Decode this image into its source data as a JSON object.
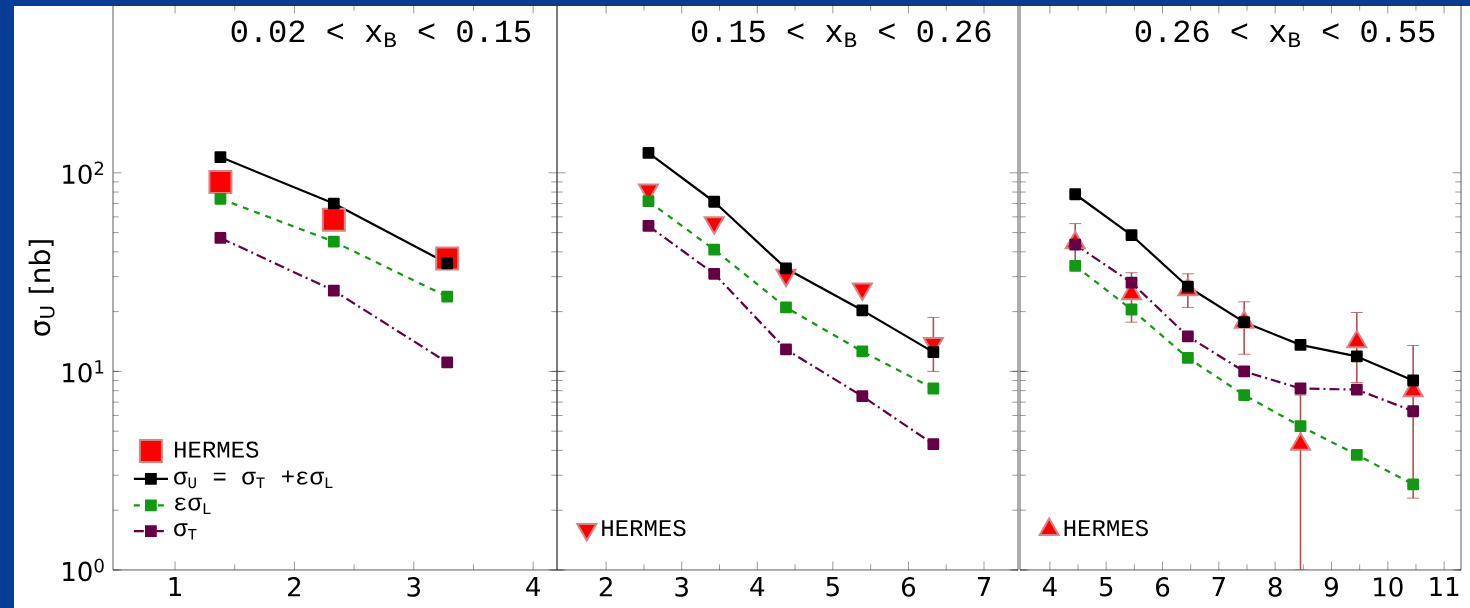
{
  "chart_data": [
    {
      "type": "line",
      "title": "0.02 < x$_{B}$ < 0.15",
      "ylabel": "σ$_{U}$ [nb]",
      "x": [
        1.38,
        2.33,
        3.28
      ],
      "xlim": [
        0.48,
        4.2
      ],
      "xticks": [
        1,
        2,
        3,
        4
      ],
      "ylim": [
        1,
        700
      ],
      "log": "y",
      "yticks": [
        {
          "value": 1,
          "label": "10$^{0}$"
        },
        {
          "value": 10,
          "label": "10$^{1}$"
        },
        {
          "value": 100,
          "label": "10$^{2}$"
        }
      ],
      "legend": "bottom left",
      "series": [
        {
          "name": "HERMES",
          "type": "scatter",
          "color": "#ff0000",
          "marker": "square",
          "values": [
            90,
            58,
            37
          ]
        },
        {
          "name": "σ$_{U}$ = σ$_{T}$ +εσ$_{L}$",
          "type": "line",
          "color": "#000000",
          "marker": "square",
          "line_style": "solid",
          "values": [
            120,
            70,
            35
          ]
        },
        {
          "name": "εσ$_{L}$",
          "type": "line",
          "color": "#119911",
          "marker": "square",
          "line_style": "dashed",
          "values": [
            74,
            45,
            23.8
          ]
        },
        {
          "name": "σ$_{T}$",
          "type": "line",
          "color": "#660044",
          "marker": "square",
          "line_style": "dashdot",
          "values": [
            47,
            25.5,
            11.1
          ]
        }
      ]
    },
    {
      "type": "line",
      "title": "0.15 < x$_{B}$ < 0.26",
      "x": [
        2.56,
        3.43,
        4.38,
        5.39,
        6.33
      ],
      "xlim": [
        1.35,
        7.45
      ],
      "xticks": [
        2,
        3,
        4,
        5,
        6,
        7
      ],
      "ylim": [
        1,
        700
      ],
      "log": "y",
      "yticks": [
        {
          "value": 1,
          "label": null
        },
        {
          "value": 10,
          "label": null
        },
        {
          "value": 100,
          "label": null
        }
      ],
      "tick_labels": "x",
      "legend": "bottom left",
      "series": [
        {
          "name": "HERMES",
          "type": "scatter",
          "color": "#ff0000",
          "marker": "triangle_down",
          "values": [
            82,
            56,
            30.5,
            26,
            13.8
          ],
          "errors": [
            null,
            null,
            null,
            null,
            [
              10,
              18.7
            ]
          ]
        },
        {
          "type": "line",
          "color": "#000000",
          "marker": "square",
          "line_style": "solid",
          "values": [
            126,
            71.5,
            33,
            20.3,
            12.5
          ]
        },
        {
          "type": "line",
          "color": "#119911",
          "marker": "square",
          "line_style": "dashed",
          "values": [
            72,
            41,
            21,
            12.6,
            8.2
          ]
        },
        {
          "type": "line",
          "color": "#660044",
          "marker": "square",
          "line_style": "dashdot",
          "values": [
            54,
            31,
            12.9,
            7.5,
            4.3
          ]
        }
      ]
    },
    {
      "type": "line",
      "title": "0.26 < x$_{B}$ < 0.55",
      "x": [
        4.45,
        5.45,
        6.45,
        7.45,
        8.45,
        9.45,
        10.45
      ],
      "xlim": [
        3.47,
        11.3
      ],
      "xticks": [
        4,
        5,
        6,
        7,
        8,
        9,
        10,
        11
      ],
      "ylim": [
        1,
        700
      ],
      "log": "y",
      "yticks": [
        {
          "value": 1,
          "label": null
        },
        {
          "value": 10,
          "label": null
        },
        {
          "value": 100,
          "label": null
        }
      ],
      "tick_labels": "x",
      "legend": "bottom left",
      "series": [
        {
          "name": "HERMES",
          "type": "scatter",
          "color": "#ff0000",
          "marker": "triangle",
          "values": [
            44.5,
            24.6,
            25.8,
            17.7,
            4.3,
            14.1,
            8.0
          ],
          "errors": [
            11,
            [
              17.7,
              31.4
            ],
            [
              21,
              31
            ],
            [
              12.2,
              22.4
            ],
            [
              1,
              7.6
            ],
            [
              8.8,
              19.8
            ],
            [
              2.3,
              13.5
            ]
          ]
        },
        {
          "type": "line",
          "color": "#000000",
          "marker": "square",
          "line_style": "solid",
          "values": [
            78,
            48.5,
            26.7,
            17.7,
            13.6,
            11.9,
            9.0
          ]
        },
        {
          "type": "line",
          "color": "#119911",
          "marker": "square",
          "line_style": "dashed",
          "values": [
            34,
            20.5,
            11.7,
            7.6,
            5.3,
            3.8,
            2.7
          ]
        },
        {
          "type": "line",
          "color": "#660044",
          "marker": "square",
          "line_style": "dashdot",
          "values": [
            43.5,
            28,
            15,
            10,
            8.2,
            8.1,
            6.3
          ]
        }
      ]
    }
  ]
}
